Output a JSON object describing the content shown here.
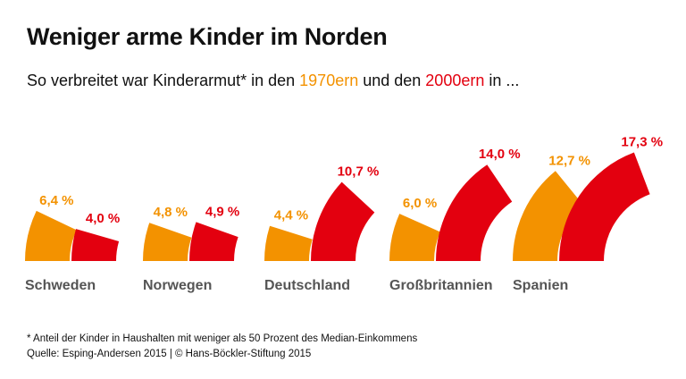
{
  "title": "Weniger arme Kinder im Norden",
  "subtitle": {
    "prefix": "So verbreitet war Kinderarmut* in den ",
    "period1": "1970ern",
    "middle": " und den ",
    "period2": "2000ern",
    "suffix": " in ..."
  },
  "chart_data": {
    "type": "polar-bar",
    "categories": [
      "Schweden",
      "Norwegen",
      "Deutschland",
      "Großbritannien",
      "Spanien"
    ],
    "series": [
      {
        "name": "1970ern",
        "color": "#f39200",
        "values": [
          6.4,
          4.8,
          4.4,
          6.0,
          12.7
        ],
        "labels": [
          "6,4 %",
          "4,8 %",
          "4,4 %",
          "6,0 %",
          "12,7 %"
        ]
      },
      {
        "name": "2000ern",
        "color": "#e3000f",
        "values": [
          4.0,
          4.9,
          10.7,
          14.0,
          17.3
        ],
        "labels": [
          "4,0 %",
          "4,9 %",
          "10,7 %",
          "14,0 %",
          "17,3 %"
        ]
      }
    ],
    "unit": "%"
  },
  "footnote": "* Anteil der Kinder in Haushalten mit weniger als 50 Prozent des Median-Einkommens",
  "source": "Quelle: Esping-Andersen 2015 | © Hans-Böckler-Stiftung 2015"
}
